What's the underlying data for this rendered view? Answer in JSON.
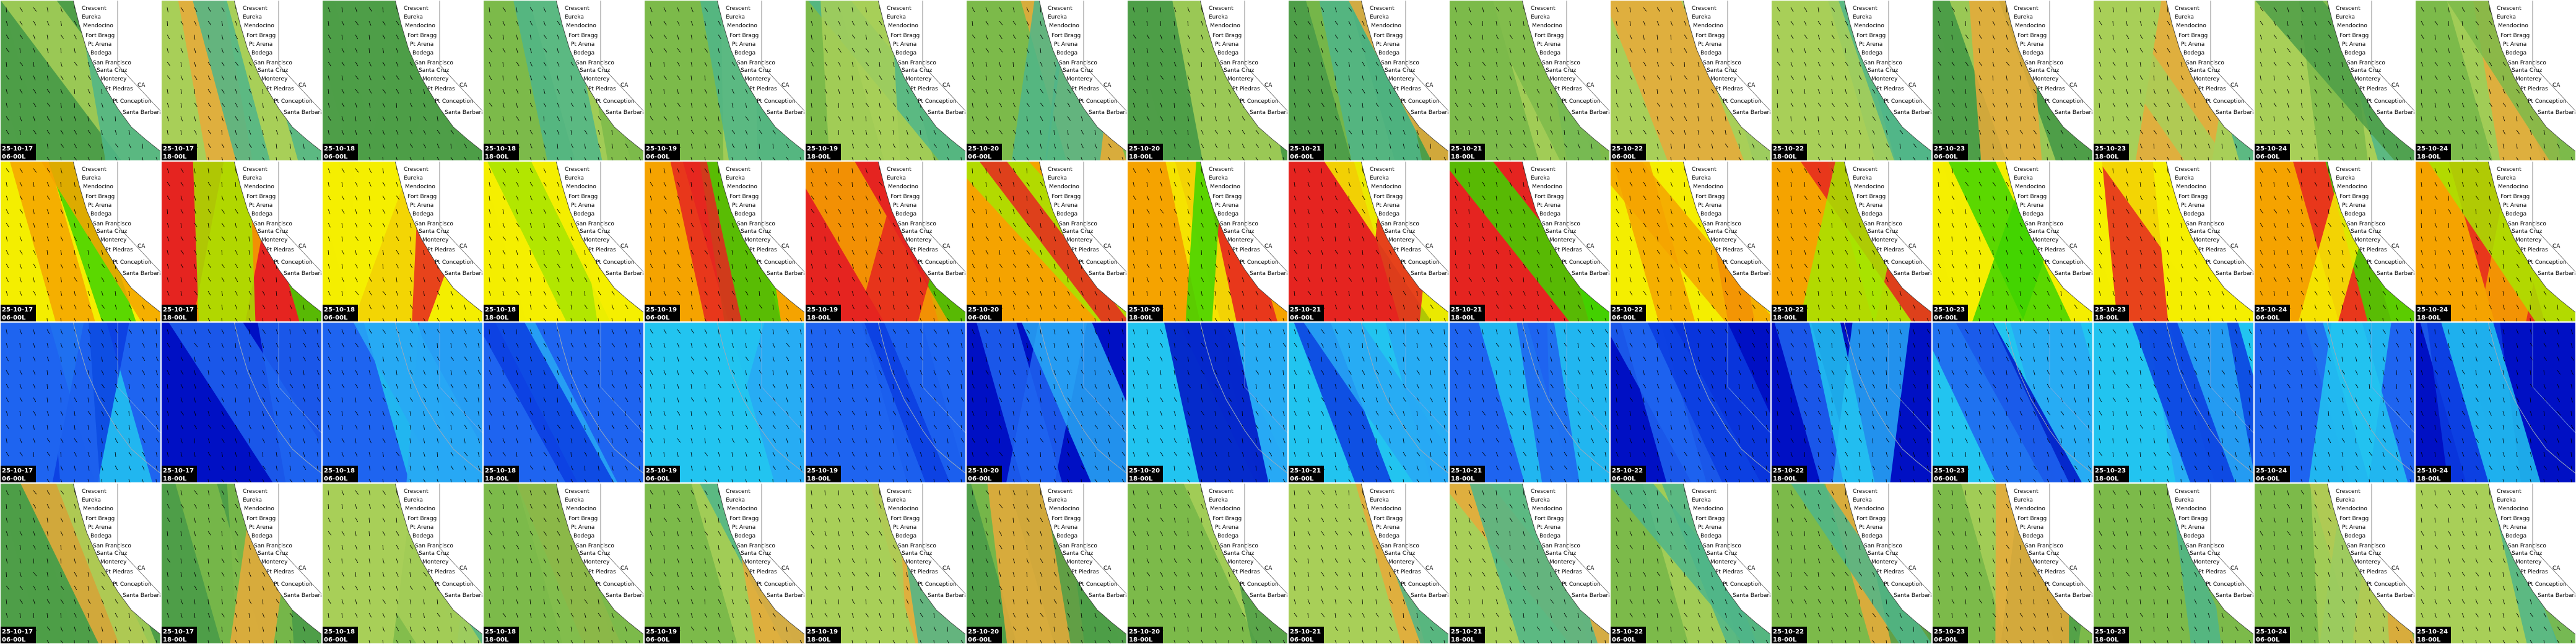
{
  "places": [
    "Crescent",
    "Eureka",
    "Mendocino",
    "Fort Bragg",
    "Pt Arena",
    "Bodega",
    "San Francisco",
    "Santa Cruz",
    "Monterey",
    "Pt Piedras",
    "Pt Conception",
    "Santa Barbara",
    "CA"
  ],
  "columns": [
    {
      "date": "25-10-17",
      "time": "06-00L"
    },
    {
      "date": "25-10-17",
      "time": "18-00L"
    },
    {
      "date": "25-10-18",
      "time": "06-00L"
    },
    {
      "date": "25-10-18",
      "time": "18-00L"
    },
    {
      "date": "25-10-19",
      "time": "06-00L"
    },
    {
      "date": "25-10-19",
      "time": "18-00L"
    },
    {
      "date": "25-10-20",
      "time": "06-00L"
    },
    {
      "date": "25-10-20",
      "time": "18-00L"
    },
    {
      "date": "25-10-21",
      "time": "06-00L"
    },
    {
      "date": "25-10-21",
      "time": "18-00L"
    },
    {
      "date": "25-10-22",
      "time": "06-00L"
    },
    {
      "date": "25-10-22",
      "time": "18-00L"
    },
    {
      "date": "25-10-23",
      "time": "06-00L"
    },
    {
      "date": "25-10-23",
      "time": "18-00L"
    },
    {
      "date": "25-10-24",
      "time": "06-00L"
    },
    {
      "date": "25-10-24",
      "time": "18-00L"
    }
  ]
}
